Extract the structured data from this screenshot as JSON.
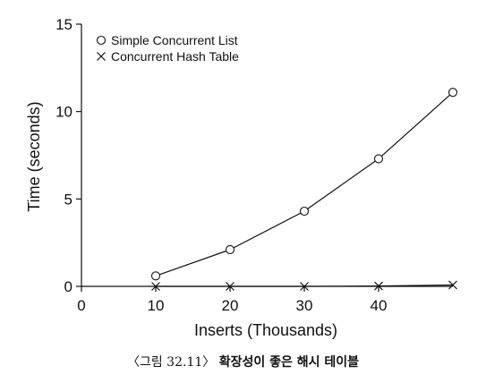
{
  "chart_data": {
    "type": "line",
    "title": "",
    "xlabel": "Inserts (Thousands)",
    "ylabel": "Time (seconds)",
    "xlim": [
      0,
      50
    ],
    "ylim": [
      0,
      15
    ],
    "x_ticks": [
      0,
      10,
      20,
      30,
      40
    ],
    "y_ticks": [
      0,
      5,
      10,
      15
    ],
    "legend_position": "top-left",
    "series": [
      {
        "name": "Simple Concurrent List",
        "marker": "circle",
        "x": [
          10,
          20,
          30,
          40,
          50
        ],
        "values": [
          0.6,
          2.1,
          4.3,
          7.3,
          11.1
        ]
      },
      {
        "name": "Concurrent Hash Table",
        "marker": "cross",
        "x": [
          10,
          20,
          30,
          40,
          50
        ],
        "values": [
          0.0,
          0.0,
          0.0,
          0.02,
          0.08
        ]
      }
    ]
  },
  "caption": {
    "prefix": "〈그림 32.11〉",
    "text": "확장성이 좋은 해시 테이블"
  }
}
